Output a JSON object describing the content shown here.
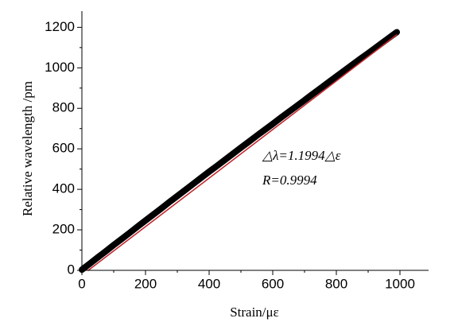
{
  "chart_data": {
    "type": "line",
    "xlabel": "Strain/με",
    "ylabel": "Relative wavelength /pm",
    "annotations": [
      "△λ=1.1994△ε",
      "R=0.9994"
    ],
    "xlim": [
      0,
      1090
    ],
    "ylim": [
      0,
      1280
    ],
    "xticks": [
      0,
      200,
      400,
      600,
      800,
      1000
    ],
    "yticks": [
      0,
      200,
      400,
      600,
      800,
      1000,
      1200
    ],
    "series": [
      {
        "color": "#000000",
        "x": [
          0,
          25,
          50,
          75,
          100,
          125,
          150,
          175,
          200,
          225,
          250,
          275,
          300,
          325,
          350,
          375,
          400,
          425,
          450,
          475,
          500,
          525,
          550,
          575,
          600,
          625,
          650,
          675,
          700,
          725,
          750,
          775,
          800,
          825,
          850,
          875,
          900,
          925,
          950,
          975,
          990
        ],
        "values": [
          3,
          33,
          64,
          94,
          125,
          155,
          185,
          216,
          246,
          276,
          306,
          337,
          367,
          397,
          427,
          457,
          487,
          516,
          546,
          576,
          606,
          635,
          665,
          694,
          723,
          753,
          782,
          811,
          840,
          870,
          899,
          928,
          957,
          986,
          1015,
          1044,
          1072,
          1101,
          1130,
          1159,
          1176
        ]
      },
      {
        "color": "#c0282d",
        "x": [
          20,
          990
        ],
        "values": [
          0,
          1163
        ]
      }
    ]
  }
}
